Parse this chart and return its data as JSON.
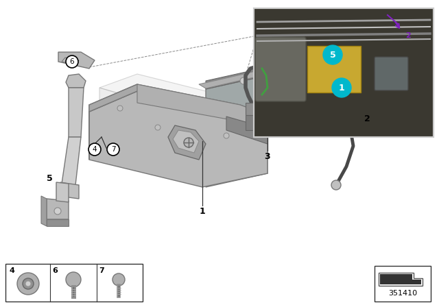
{
  "bg_color": "#ffffff",
  "diagram_id": "351410",
  "tray_top_color": "#c0c0c0",
  "tray_side_color": "#a0a0a0",
  "tray_dark_color": "#808080",
  "bracket_color": "#c8c8c8",
  "battery_ghost_color": "#d8d8d8",
  "cable_color": "#484848",
  "plug_color": "#8a8a8a",
  "label_color": "#000000",
  "circle_label_fc": "#ffffff",
  "circle_label_ec": "#000000",
  "dashed_color": "#888888",
  "line_color": "#333333",
  "photo_border_color": "#cccccc"
}
